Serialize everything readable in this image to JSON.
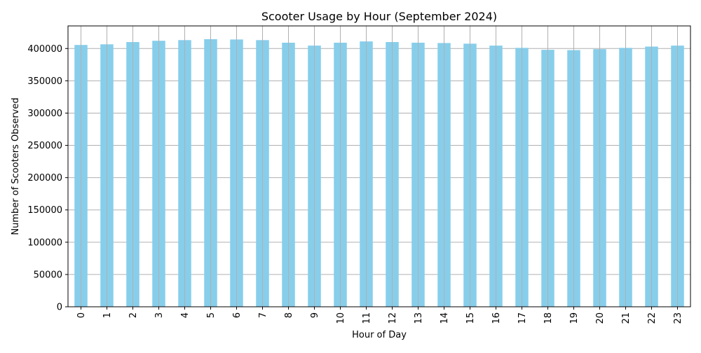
{
  "chart_data": {
    "type": "bar",
    "title": "Scooter Usage by Hour (September 2024)",
    "xlabel": "Hour of Day",
    "ylabel": "Number of Scooters Observed",
    "categories": [
      "0",
      "1",
      "2",
      "3",
      "4",
      "5",
      "6",
      "7",
      "8",
      "9",
      "10",
      "11",
      "12",
      "13",
      "14",
      "15",
      "16",
      "17",
      "18",
      "19",
      "20",
      "21",
      "22",
      "23"
    ],
    "values": [
      405500,
      406500,
      410000,
      412000,
      413000,
      414500,
      414000,
      413000,
      409000,
      404500,
      409000,
      411000,
      410000,
      409000,
      408500,
      407500,
      404500,
      401000,
      398000,
      397500,
      399000,
      401000,
      403000,
      404500
    ],
    "yticks": [
      0,
      50000,
      100000,
      150000,
      200000,
      250000,
      300000,
      350000,
      400000
    ],
    "ylim": [
      0,
      435000
    ],
    "grid": true,
    "colors": {
      "bar": "#87CEEB",
      "grid": "#b0b0b0",
      "axis": "#000000"
    }
  }
}
